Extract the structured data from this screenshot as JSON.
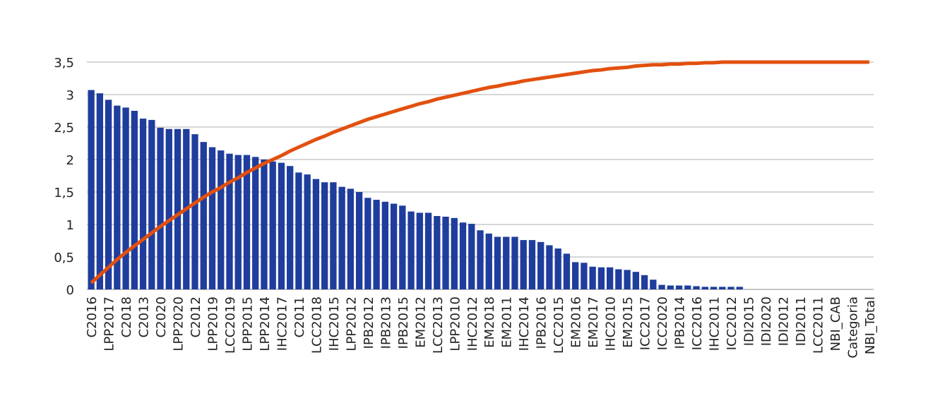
{
  "chart_data": {
    "type": "bar",
    "categories": [
      "C2016",
      null,
      "LPP2017",
      null,
      "C2018",
      null,
      "C2013",
      null,
      "C2020",
      null,
      "LPP2020",
      null,
      "C2012",
      null,
      "LPP2019",
      null,
      "LCC2019",
      null,
      "LPP2015",
      null,
      "LPP2014",
      null,
      "IHC2017",
      null,
      "C2011",
      null,
      "LCC2018",
      null,
      "IHC2015",
      null,
      "LPP2012",
      null,
      "IPB2012",
      null,
      "IPB2013",
      null,
      "IPB2015",
      null,
      "EM2012",
      null,
      "LCC2013",
      null,
      "LPP2010",
      null,
      "IHC2012",
      null,
      "EM2018",
      null,
      "EM2011",
      null,
      "IHC2014",
      null,
      "IPB2016",
      null,
      "LCC2015",
      null,
      "EM2016",
      null,
      "EM2017",
      null,
      "IHC2010",
      null,
      "EM2015",
      null,
      "ICC2017",
      null,
      "ICC2020",
      null,
      "IPB2014",
      null,
      "ICC2016",
      null,
      "IHC2011",
      null,
      "ICC2012",
      null,
      "IDI2015",
      null,
      "IDI2020",
      null,
      "IDI2012",
      null,
      "IDI2011",
      null,
      "LCC2011",
      null,
      "NBI_CAB",
      null,
      "Categoria",
      null,
      "NBI_Total"
    ],
    "series": [
      {
        "type": "bar",
        "color": "#1f3d9c",
        "values": [
          3.07,
          3.02,
          2.92,
          2.83,
          2.8,
          2.75,
          2.63,
          2.61,
          2.49,
          2.47,
          2.47,
          2.47,
          2.39,
          2.27,
          2.19,
          2.14,
          2.09,
          2.07,
          2.07,
          2.04,
          2.0,
          1.97,
          1.95,
          1.9,
          1.8,
          1.77,
          1.7,
          1.65,
          1.65,
          1.58,
          1.55,
          1.5,
          1.41,
          1.38,
          1.35,
          1.32,
          1.29,
          1.2,
          1.18,
          1.18,
          1.13,
          1.12,
          1.1,
          1.03,
          1.01,
          0.91,
          0.86,
          0.81,
          0.81,
          0.81,
          0.76,
          0.76,
          0.73,
          0.68,
          0.63,
          0.55,
          0.42,
          0.41,
          0.35,
          0.34,
          0.34,
          0.31,
          0.3,
          0.27,
          0.22,
          0.15,
          0.07,
          0.06,
          0.06,
          0.06,
          0.05,
          0.04,
          0.04,
          0.04,
          0.04,
          0.04,
          0,
          0,
          0,
          0,
          0,
          0,
          0,
          0,
          0,
          0,
          0,
          0,
          0,
          0,
          0
        ]
      },
      {
        "type": "line",
        "color": "#e2500f",
        "values": [
          0.1,
          0.22,
          0.34,
          0.46,
          0.57,
          0.67,
          0.77,
          0.87,
          0.97,
          1.06,
          1.15,
          1.24,
          1.33,
          1.42,
          1.5,
          1.57,
          1.65,
          1.72,
          1.8,
          1.87,
          1.94,
          2.0,
          2.06,
          2.13,
          2.19,
          2.25,
          2.31,
          2.36,
          2.42,
          2.47,
          2.52,
          2.57,
          2.62,
          2.66,
          2.7,
          2.74,
          2.78,
          2.82,
          2.86,
          2.89,
          2.93,
          2.96,
          2.99,
          3.02,
          3.05,
          3.08,
          3.11,
          3.13,
          3.16,
          3.18,
          3.21,
          3.23,
          3.25,
          3.27,
          3.29,
          3.31,
          3.33,
          3.35,
          3.37,
          3.38,
          3.4,
          3.41,
          3.42,
          3.44,
          3.45,
          3.46,
          3.46,
          3.47,
          3.47,
          3.48,
          3.48,
          3.49,
          3.49,
          3.5,
          3.5,
          3.5,
          3.5,
          3.5,
          3.5,
          3.5,
          3.5,
          3.5,
          3.5,
          3.5,
          3.5,
          3.5,
          3.5,
          3.5,
          3.5,
          3.5,
          3.5
        ]
      }
    ],
    "ylim": [
      0,
      3.5
    ],
    "yticks": [
      0,
      {
        "value": 0.5,
        "label": "0,5"
      },
      1,
      {
        "value": 1.5,
        "label": "1,5"
      },
      2,
      {
        "value": 2.5,
        "label": "2,5"
      },
      3,
      {
        "value": 3.5,
        "label": "3,5"
      }
    ],
    "grid": true
  }
}
